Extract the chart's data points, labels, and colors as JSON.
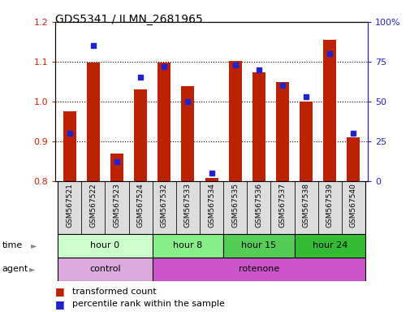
{
  "title": "GDS5341 / ILMN_2681965",
  "samples": [
    "GSM567521",
    "GSM567522",
    "GSM567523",
    "GSM567524",
    "GSM567532",
    "GSM567533",
    "GSM567534",
    "GSM567535",
    "GSM567536",
    "GSM567537",
    "GSM567538",
    "GSM567539",
    "GSM567540"
  ],
  "transformed_counts": [
    0.975,
    1.098,
    0.868,
    1.03,
    1.098,
    1.038,
    0.808,
    1.102,
    1.073,
    1.048,
    1.0,
    1.155,
    0.91
  ],
  "percentile_ranks": [
    30,
    85,
    12,
    65,
    72,
    50,
    5,
    73,
    70,
    60,
    53,
    80,
    30
  ],
  "ylim_left": [
    0.8,
    1.2
  ],
  "ylim_right": [
    0,
    100
  ],
  "yticks_left": [
    0.8,
    0.9,
    1.0,
    1.1,
    1.2
  ],
  "yticks_right": [
    0,
    25,
    50,
    75,
    100
  ],
  "ytick_labels_right": [
    "0",
    "25",
    "50",
    "75",
    "100%"
  ],
  "bar_color": "#bb2200",
  "dot_color": "#2222cc",
  "bar_bottom": 0.8,
  "time_groups": [
    {
      "label": "hour 0",
      "start": 0,
      "end": 4,
      "color": "#ccffcc"
    },
    {
      "label": "hour 8",
      "start": 4,
      "end": 7,
      "color": "#88ee88"
    },
    {
      "label": "hour 15",
      "start": 7,
      "end": 10,
      "color": "#55cc55"
    },
    {
      "label": "hour 24",
      "start": 10,
      "end": 13,
      "color": "#33bb33"
    }
  ],
  "agent_groups": [
    {
      "label": "control",
      "start": 0,
      "end": 4,
      "color": "#ddaadd"
    },
    {
      "label": "rotenone",
      "start": 4,
      "end": 13,
      "color": "#cc55cc"
    }
  ],
  "background_color": "white",
  "plot_bg": "white",
  "sample_bg": "#dddddd",
  "grid_yticks": [
    0.9,
    1.0,
    1.1
  ]
}
